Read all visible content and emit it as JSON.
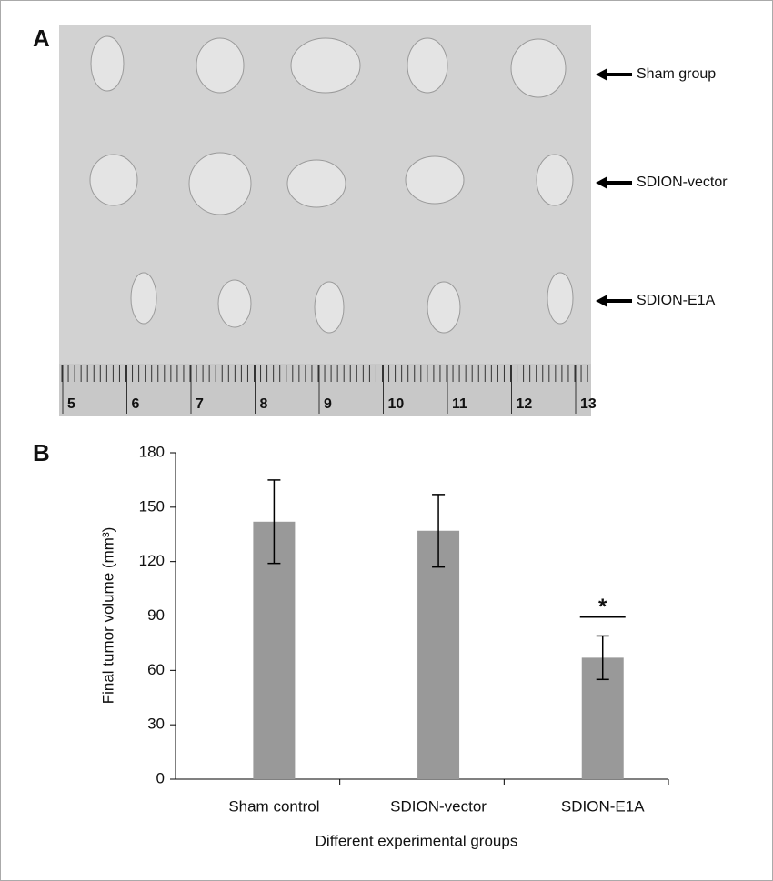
{
  "panel_a": {
    "label": "A",
    "rows": [
      "Sham group",
      "SDION-vector",
      "SDION-E1A"
    ],
    "ruler_labels": [
      5,
      6,
      7,
      8,
      9,
      10,
      11,
      12,
      13
    ]
  },
  "chart_data": {
    "type": "bar",
    "panel_label": "B",
    "categories": [
      "Sham control",
      "SDION-vector",
      "SDION-E1A"
    ],
    "values": [
      142,
      137,
      67
    ],
    "errors": [
      23,
      20,
      12
    ],
    "color": "#999999",
    "annotation": "*",
    "x_label": "Different experimental groups",
    "y_label": "Final tumor volume (mm³)",
    "ylim": [
      0,
      180
    ],
    "yticks": [
      0,
      30,
      60,
      90,
      120,
      150,
      180
    ]
  }
}
